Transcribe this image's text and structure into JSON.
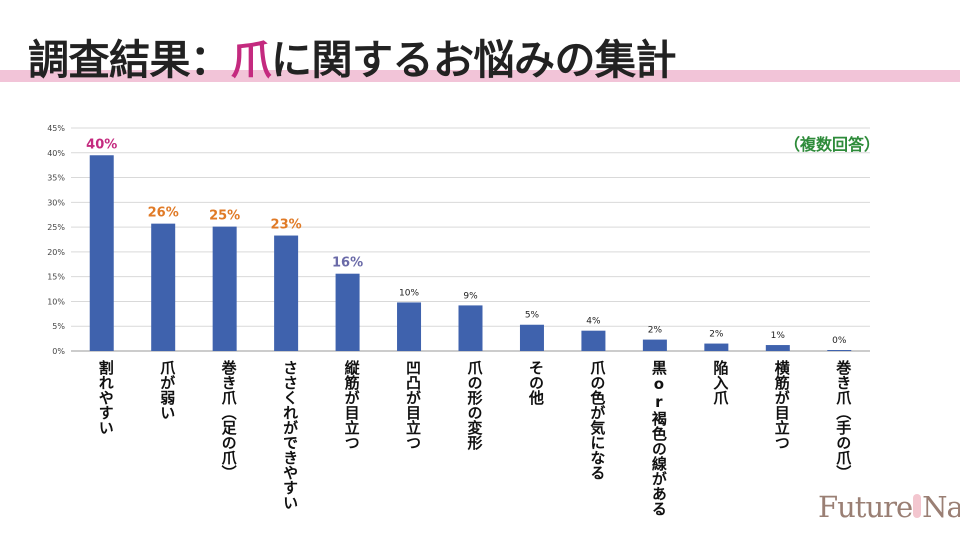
{
  "title": {
    "prefix": "調査結果：",
    "accent": "爪",
    "suffix": "に関するお悩みの集計"
  },
  "colors": {
    "accent": "#c42a7f",
    "band": "#f2c4d8",
    "bar": "#3f62ad",
    "label_pink": "#c42a7f",
    "label_orange": "#e07a26",
    "label_purple": "#6a6aa8",
    "note": "#2e8b3a"
  },
  "note": "（複数回答）",
  "logo": "FutureNail",
  "chart_data": {
    "type": "bar",
    "categories": [
      "割れやすい",
      "爪が弱い",
      "巻き爪（足の爪）",
      "ささくれができやすい",
      "縦筋が目立つ",
      "凹凸が目立つ",
      "爪の形の変形",
      "その他",
      "爪の色が気になる",
      "黒or褐色の線がある",
      "陥入爪",
      "横筋が目立つ",
      "巻き爪（手の爪）"
    ],
    "values": [
      39.5,
      25.7,
      25.1,
      23.3,
      15.6,
      9.8,
      9.2,
      5.3,
      4.1,
      2.3,
      1.5,
      1.2,
      0.2
    ],
    "data_labels": [
      "40%",
      "26%",
      "25%",
      "23%",
      "16%",
      "10%",
      "9%",
      "5%",
      "4%",
      "2%",
      "2%",
      "1%",
      "0%"
    ],
    "label_styles": [
      "pink",
      "orange",
      "orange",
      "orange",
      "purple",
      "plain",
      "plain",
      "plain",
      "plain",
      "plain",
      "plain",
      "plain",
      "plain"
    ],
    "y_ticks": [
      "0%",
      "5%",
      "10%",
      "15%",
      "20%",
      "25%",
      "30%",
      "35%",
      "40%",
      "45%"
    ],
    "ylim": [
      0,
      45
    ],
    "grid": true
  }
}
